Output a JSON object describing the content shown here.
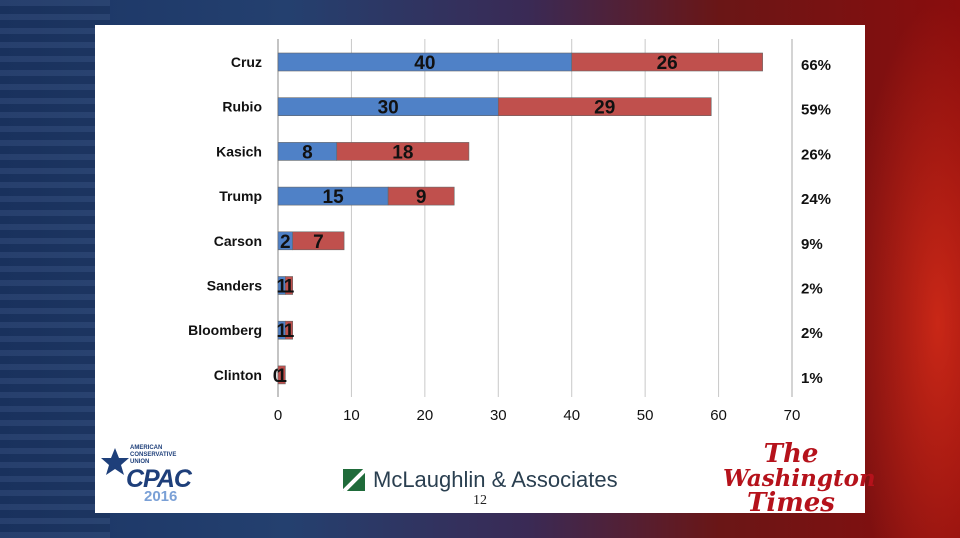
{
  "chart_data": {
    "type": "bar",
    "orientation": "horizontal",
    "stacked": true,
    "categories": [
      "Cruz",
      "Rubio",
      "Kasich",
      "Trump",
      "Carson",
      "Sanders",
      "Bloomberg",
      "Clinton"
    ],
    "series": [
      {
        "values": [
          40,
          30,
          8,
          15,
          2,
          1,
          1,
          0
        ],
        "color": "#4f81c7"
      },
      {
        "values": [
          26,
          29,
          18,
          9,
          7,
          1,
          1,
          1
        ],
        "color": "#c0504d"
      }
    ],
    "totals": [
      "66%",
      "59%",
      "26%",
      "24%",
      "9%",
      "2%",
      "2%",
      "1%"
    ],
    "xlim": [
      0,
      70
    ],
    "xticks": [
      0,
      10,
      20,
      30,
      40,
      50,
      60,
      70
    ],
    "grid": true
  },
  "footer": {
    "cpac_org_line1": "AMERICAN",
    "cpac_org_line2": "CONSERVATIVE",
    "cpac_org_line3": "UNION",
    "cpac_name": "CPAC",
    "cpac_year": "2016",
    "pollster": "McLaughlin & Associates",
    "page_number": "12",
    "newspaper_line1": "The",
    "newspaper_line2": "Washington",
    "newspaper_line3": "Times"
  },
  "colors": {
    "series_1": "#4f81c7",
    "series_2": "#c0504d",
    "grid": "#c8c8c8",
    "newspaper": "#b5121b",
    "cpac": "#1e3f7a"
  }
}
